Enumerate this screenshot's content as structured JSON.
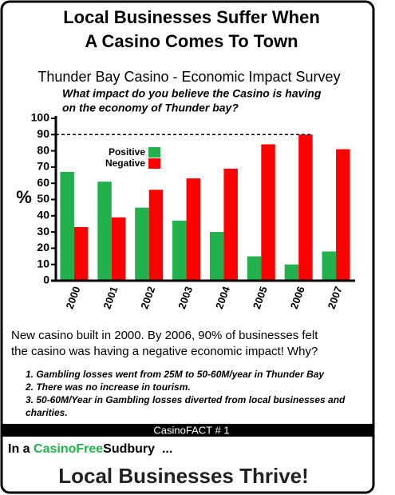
{
  "headline": [
    "Local Businesses Suffer When",
    "A Casino Comes To Town"
  ],
  "chart_data": {
    "type": "bar",
    "title": "Thunder Bay Casino - Economic Impact Survey",
    "subtitle": [
      "What impact do you believe the Casino is having",
      "on the economy of Thunder bay?"
    ],
    "ylabel": "%",
    "categories": [
      "2000",
      "2001",
      "2002",
      "2003",
      "2004",
      "2005",
      "2006",
      "2007"
    ],
    "series": [
      {
        "name": "Positive",
        "color": "#22b14c",
        "values": [
          67,
          61,
          45,
          37,
          30,
          15,
          10,
          18
        ]
      },
      {
        "name": "Negative",
        "color": "#ff0000",
        "values": [
          33,
          39,
          56,
          63,
          69,
          84,
          90,
          81
        ]
      }
    ],
    "ylim": [
      0,
      100
    ],
    "yticks": [
      0,
      10,
      20,
      30,
      40,
      50,
      60,
      70,
      80,
      90,
      100
    ],
    "reference_line": 90
  },
  "note": [
    "New casino built in 2000. By 2006, 90% of businesses felt",
    "the casino was having a negative economic impact! Why?"
  ],
  "points": [
    "1. Gambling losses went from 25M to 50-60M/year in Thunder Bay",
    "2. There was no increase in tourism.",
    "3. 50-60M/Year in Gambling losses diverted from local businesses and",
    "charities."
  ],
  "fact_bar": "CasinoFACT # 1",
  "footer": {
    "prefix": "In a ",
    "brand_green": "CasinoFree",
    "brand_rest": "Sudbury",
    "suffix": "  ...",
    "tagline": "Local Businesses Thrive!"
  }
}
